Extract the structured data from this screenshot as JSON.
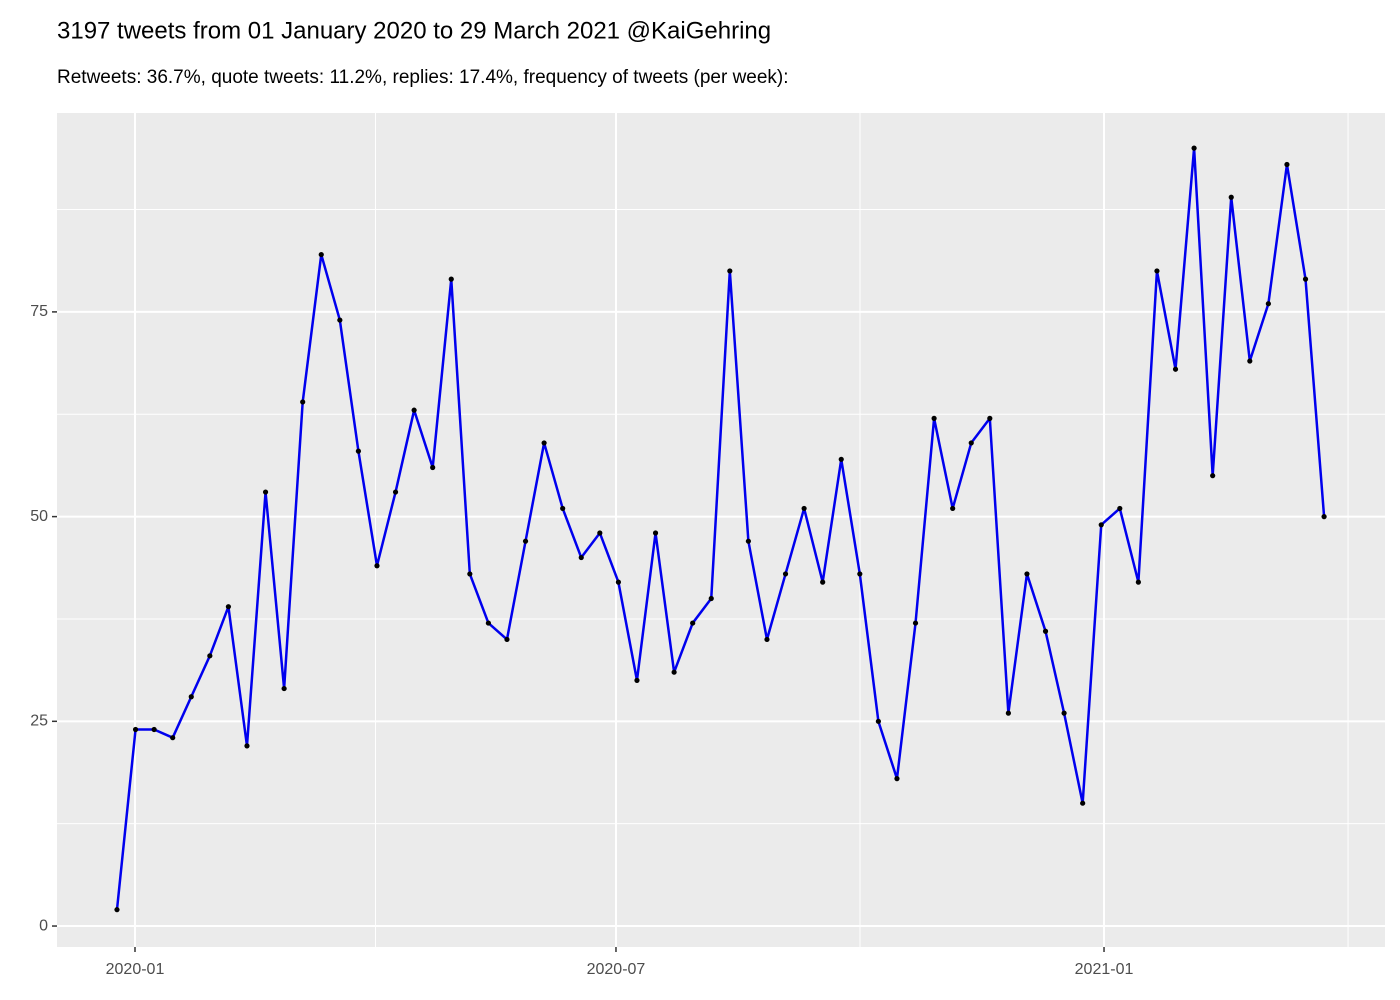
{
  "chart_data": {
    "type": "line",
    "title": "3197 tweets from 01 January 2020 to 29 March 2021 @KaiGehring",
    "subtitle": "Retweets: 36.7%, quote tweets: 11.2%, replies: 17.4%, frequency of tweets (per week):",
    "x": [
      0,
      1,
      2,
      3,
      4,
      5,
      6,
      7,
      8,
      9,
      10,
      11,
      12,
      13,
      14,
      15,
      16,
      17,
      18,
      19,
      20,
      21,
      22,
      23,
      24,
      25,
      26,
      27,
      28,
      29,
      30,
      31,
      32,
      33,
      34,
      35,
      36,
      37,
      38,
      39,
      40,
      41,
      42,
      43,
      44,
      45,
      46,
      47,
      48,
      49,
      50,
      51,
      52,
      53,
      54,
      55,
      56,
      57,
      58,
      59,
      60,
      61,
      62,
      63,
      64,
      65
    ],
    "series": [
      {
        "color": "#0000ee",
        "point_color": "#000000",
        "values": [
          2,
          24,
          24,
          23,
          28,
          33,
          39,
          22,
          53,
          29,
          64,
          82,
          74,
          58,
          44,
          53,
          63,
          56,
          79,
          43,
          37,
          35,
          47,
          59,
          51,
          45,
          48,
          42,
          30,
          48,
          31,
          37,
          40,
          80,
          47,
          35,
          43,
          51,
          42,
          57,
          43,
          25,
          18,
          37,
          62,
          51,
          59,
          62,
          26,
          43,
          36,
          26,
          15,
          49,
          51,
          42,
          80,
          68,
          95,
          55,
          89,
          69,
          76,
          93,
          79,
          50
        ]
      }
    ],
    "xlim": [
      -3.23,
      68.28
    ],
    "xticks": [
      {
        "value": 0.97,
        "label": "2020-01"
      },
      {
        "value": 26.87,
        "label": "2020-07"
      },
      {
        "value": 53.15,
        "label": "2021-01"
      }
    ],
    "ylim": [
      -2.56,
      99.29
    ],
    "yticks": [
      0,
      25,
      50,
      75
    ],
    "grid": true
  }
}
